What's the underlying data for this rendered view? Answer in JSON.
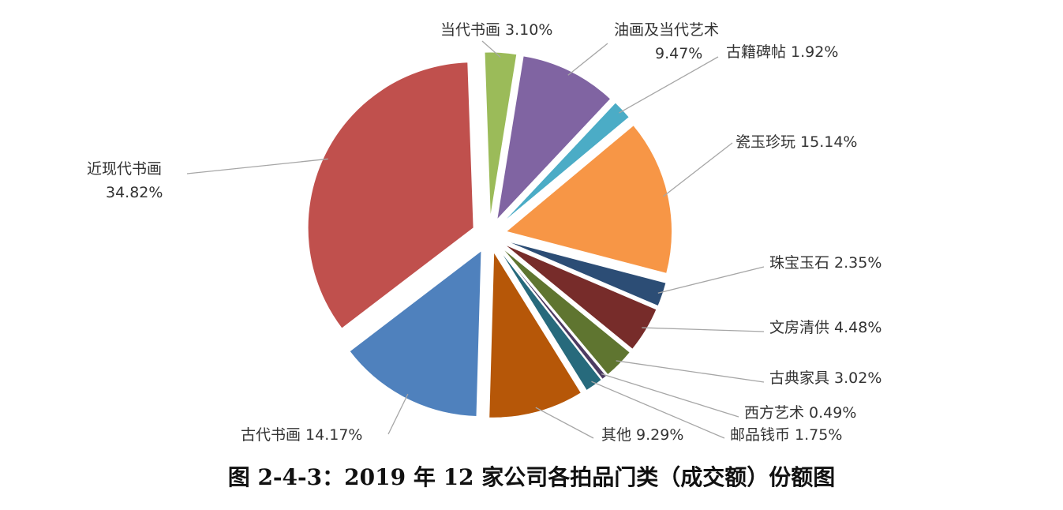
{
  "chart_data": {
    "type": "pie",
    "title": "图 2-4-3：2019 年 12 家公司各拍品门类（成交额）份额图",
    "slices": [
      {
        "label": "当代书画",
        "pct_text": "3.10%",
        "value": 3.1,
        "color": "#9BBB59"
      },
      {
        "label": "油画及当代艺术",
        "pct_text": "9.47%",
        "value": 9.47,
        "color": "#8064A2"
      },
      {
        "label": "古籍碑帖",
        "pct_text": "1.92%",
        "value": 1.92,
        "color": "#4BACC6"
      },
      {
        "label": "瓷玉珍玩",
        "pct_text": "15.14%",
        "value": 15.14,
        "color": "#F79646"
      },
      {
        "label": "珠宝玉石",
        "pct_text": "2.35%",
        "value": 2.35,
        "color": "#2C4D75"
      },
      {
        "label": "文房清供",
        "pct_text": "4.48%",
        "value": 4.48,
        "color": "#772C2A"
      },
      {
        "label": "古典家具",
        "pct_text": "3.02%",
        "value": 3.02,
        "color": "#5F7530"
      },
      {
        "label": "西方艺术",
        "pct_text": "0.49%",
        "value": 0.49,
        "color": "#4D3B62"
      },
      {
        "label": "邮品钱币",
        "pct_text": "1.75%",
        "value": 1.75,
        "color": "#276A7C"
      },
      {
        "label": "其他",
        "pct_text": "9.29%",
        "value": 9.29,
        "color": "#B65708"
      },
      {
        "label": "古代书画",
        "pct_text": "14.17%",
        "value": 14.17,
        "color": "#4F81BD"
      },
      {
        "label": "近现代书画",
        "pct_text": "34.82%",
        "value": 34.82,
        "color": "#C0504D"
      }
    ]
  }
}
